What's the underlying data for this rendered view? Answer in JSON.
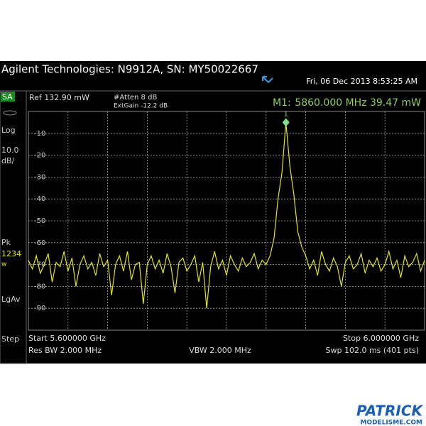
{
  "header": {
    "title": "Agilent Technologies: N9912A, SN: MY50022667",
    "datetime": "Fri, 06 Dec 2013 8:53:25 AM"
  },
  "side_panel": {
    "mode": "SA",
    "scale_type": "Log",
    "scale_line1": "10.0",
    "scale_line2": "dB/",
    "detector": "Pk",
    "traces": "1234",
    "trace_flag": "w",
    "avg": "LgAv",
    "step": "Step"
  },
  "settings": {
    "ref": "Ref 132.90 mW",
    "atten": "#Atten 8 dB",
    "ext_gain": "ExtGain -12.2 dB"
  },
  "marker": {
    "label": "M1:",
    "readout": "5860.000 MHz  39.47 mW",
    "number": "1"
  },
  "footer": {
    "start": "Start 5.600000 GHz",
    "stop": "Stop 6.000000 GHz",
    "rbw": "Res BW 2.000 MHz",
    "vbw": "VBW 2.000 MHz",
    "sweep": "Swp 102.0 ms (401 pts)"
  },
  "watermark": {
    "brand": "PATRICK",
    "site": "MODELISME.COM"
  },
  "chart_data": {
    "type": "line",
    "x": [
      5.6,
      5.604,
      5.608,
      5.612,
      5.616,
      5.62,
      5.624,
      5.628,
      5.632,
      5.636,
      5.64,
      5.644,
      5.648,
      5.652,
      5.656,
      5.66,
      5.664,
      5.668,
      5.672,
      5.676,
      5.68,
      5.684,
      5.688,
      5.692,
      5.696,
      5.7,
      5.704,
      5.708,
      5.712,
      5.716,
      5.72,
      5.724,
      5.728,
      5.732,
      5.736,
      5.74,
      5.744,
      5.748,
      5.752,
      5.756,
      5.76,
      5.764,
      5.768,
      5.772,
      5.776,
      5.78,
      5.784,
      5.788,
      5.792,
      5.796,
      5.8,
      5.804,
      5.808,
      5.812,
      5.816,
      5.82,
      5.824,
      5.828,
      5.832,
      5.836,
      5.84,
      5.844,
      5.848,
      5.852,
      5.856,
      5.86,
      5.864,
      5.868,
      5.872,
      5.876,
      5.88,
      5.884,
      5.888,
      5.892,
      5.896,
      5.9,
      5.904,
      5.908,
      5.912,
      5.916,
      5.92,
      5.924,
      5.928,
      5.932,
      5.936,
      5.94,
      5.944,
      5.948,
      5.952,
      5.956,
      5.96,
      5.964,
      5.968,
      5.972,
      5.976,
      5.98,
      5.984,
      5.988,
      5.992,
      5.996,
      6.0
    ],
    "values": [
      -68,
      -72,
      -66,
      -74,
      -70,
      -65,
      -78,
      -69,
      -71,
      -64,
      -73,
      -67,
      -80,
      -70,
      -66,
      -72,
      -69,
      -75,
      -65,
      -71,
      -68,
      -84,
      -70,
      -66,
      -73,
      -64,
      -77,
      -70,
      -69,
      -88,
      -70,
      -66,
      -72,
      -68,
      -74,
      -65,
      -71,
      -83,
      -69,
      -67,
      -73,
      -70,
      -66,
      -78,
      -69,
      -90,
      -71,
      -64,
      -72,
      -68,
      -75,
      -66,
      -70,
      -73,
      -67,
      -71,
      -69,
      -65,
      -72,
      -68,
      -70,
      -66,
      -58,
      -40,
      -28,
      -5,
      -25,
      -38,
      -55,
      -62,
      -66,
      -72,
      -68,
      -75,
      -64,
      -70,
      -73,
      -67,
      -71,
      -80,
      -69,
      -66,
      -72,
      -70,
      -65,
      -74,
      -68,
      -71,
      -67,
      -73,
      -70,
      -64,
      -72,
      -68,
      -76,
      -66,
      -71,
      -69,
      -65,
      -73,
      -68
    ],
    "color": "#e6e619",
    "xlim": [
      5.6,
      6.0
    ],
    "ylim": [
      -100,
      0
    ],
    "yticks": [
      -10,
      -20,
      -30,
      -40,
      -50,
      -60,
      -70,
      -80,
      -90
    ],
    "grid": true
  }
}
